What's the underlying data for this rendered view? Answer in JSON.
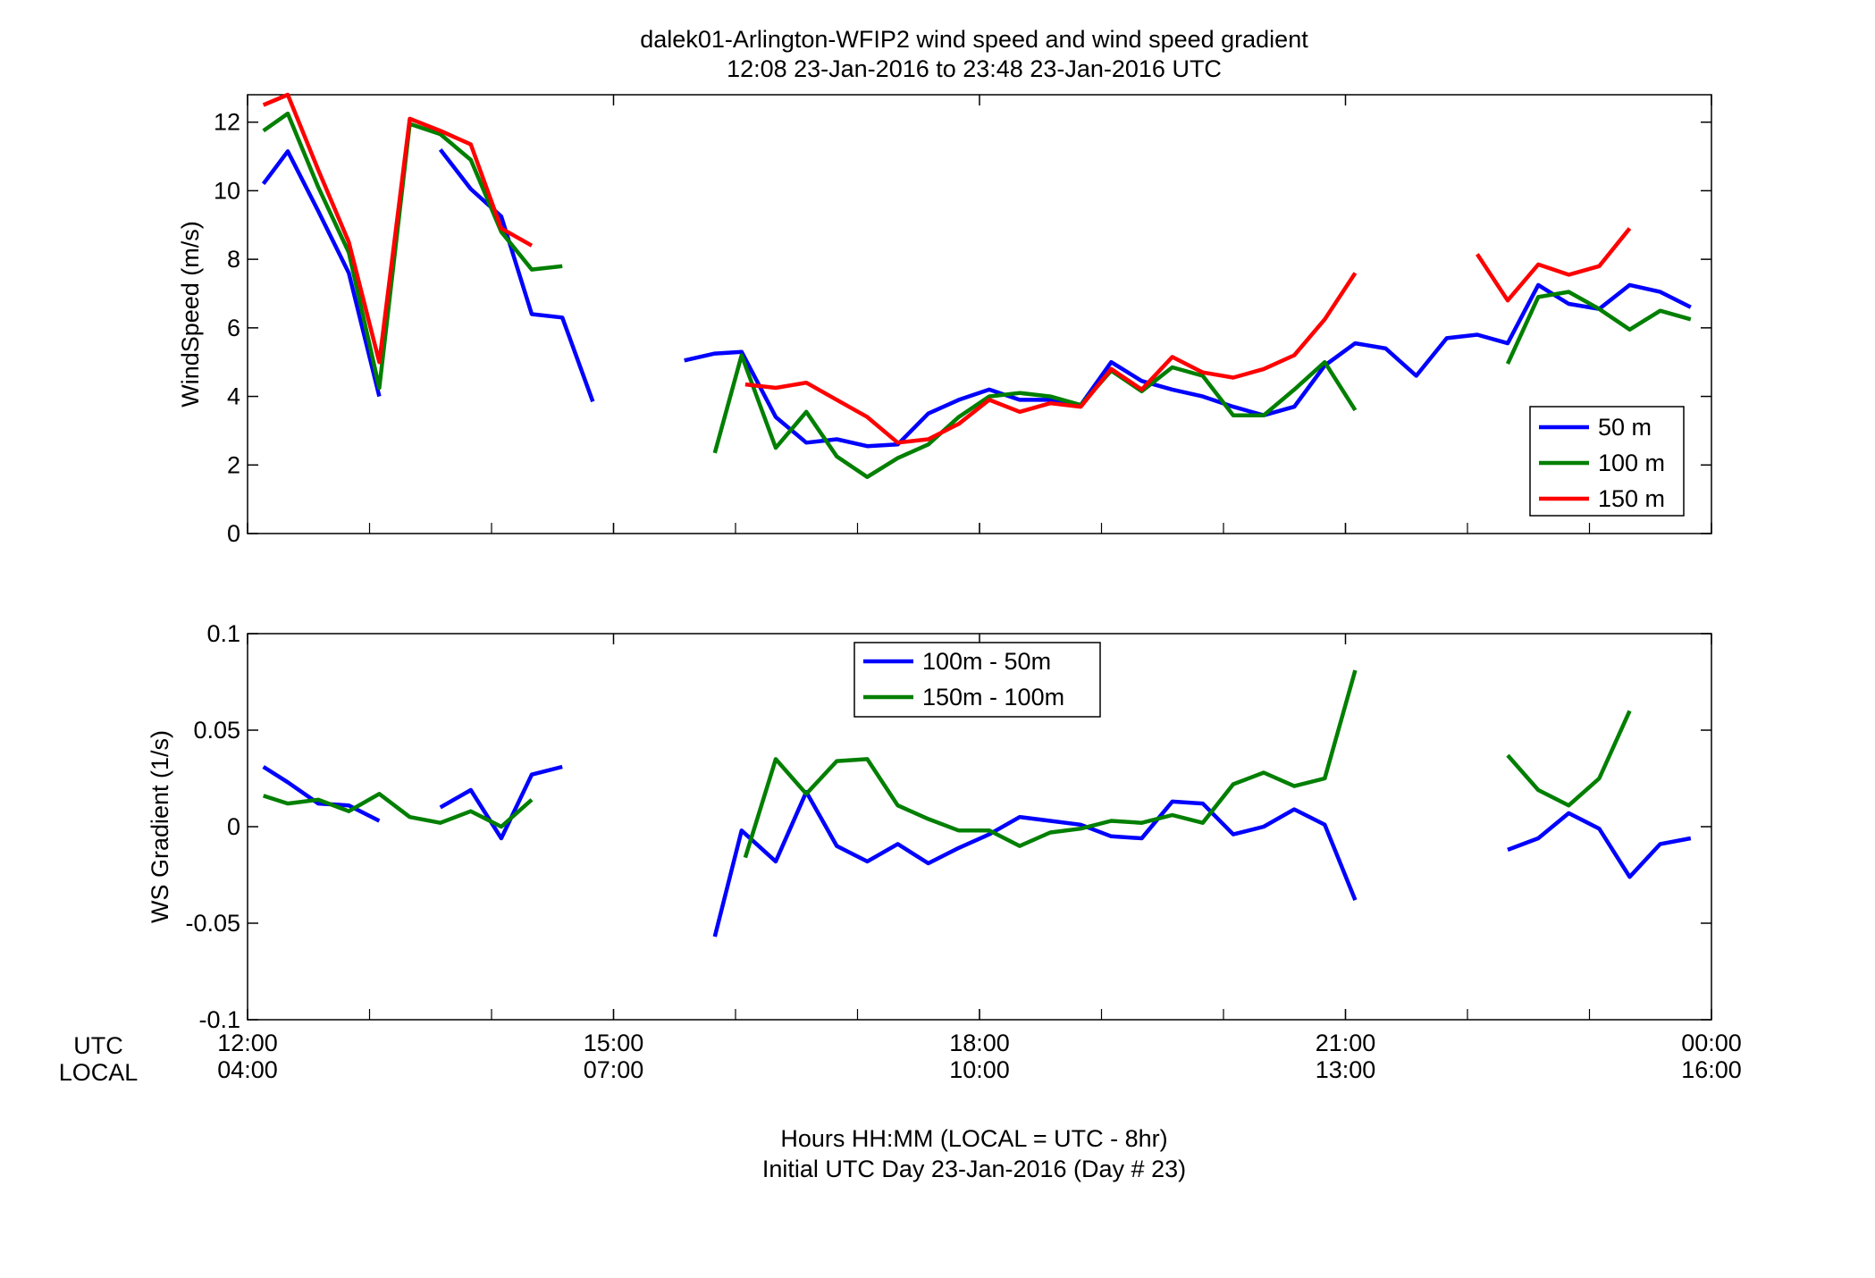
{
  "chart_data": {
    "title_line1": "dalek01-Arlington-WFIP2  wind speed and wind speed gradient",
    "title_line2": "12:08 23-Jan-2016 to 23:48 23-Jan-2016  UTC",
    "x_axis": {
      "unit": "hours",
      "range": [
        12,
        24
      ],
      "ticks": [
        12,
        15,
        18,
        21,
        24
      ],
      "utc_tick_labels": [
        "12:00",
        "15:00",
        "18:00",
        "21:00",
        "00:00"
      ],
      "local_tick_labels": [
        "04:00",
        "07:00",
        "10:00",
        "13:00",
        "16:00"
      ],
      "row_label_utc": "UTC",
      "row_label_local": "LOCAL",
      "xlabel_line1": "Hours HH:MM  (LOCAL = UTC - 8hr)",
      "xlabel_line2": "Initial UTC Day 23-Jan-2016 (Day # 23)"
    },
    "charts": [
      {
        "type": "line",
        "ylabel": "WindSpeed (m/s)",
        "ylim": [
          0,
          12.8
        ],
        "yticks": [
          0,
          2,
          4,
          6,
          8,
          10,
          12
        ],
        "ytick_labels": [
          "0",
          "2",
          "4",
          "6",
          "8",
          "10",
          "12"
        ],
        "grid": false,
        "legend_position": "bottom-right",
        "series": [
          {
            "name": "50 m",
            "color": "#0000ff",
            "segments": [
              [
                [
                  12.13,
                  10.2
                ],
                [
                  12.33,
                  11.15
                ],
                [
                  12.58,
                  9.4
                ],
                [
                  12.83,
                  7.6
                ],
                [
                  13.08,
                  4.0
                ]
              ],
              [
                [
                  13.58,
                  11.2
                ],
                [
                  13.83,
                  10.05
                ],
                [
                  14.08,
                  9.25
                ],
                [
                  14.33,
                  6.4
                ],
                [
                  14.58,
                  6.3
                ],
                [
                  14.83,
                  3.85
                ]
              ],
              [
                [
                  15.58,
                  5.05
                ],
                [
                  15.83,
                  5.25
                ],
                [
                  16.05,
                  5.3
                ],
                [
                  16.33,
                  3.4
                ],
                [
                  16.58,
                  2.65
                ],
                [
                  16.83,
                  2.75
                ],
                [
                  17.08,
                  2.55
                ],
                [
                  17.33,
                  2.6
                ],
                [
                  17.58,
                  3.5
                ],
                [
                  17.83,
                  3.9
                ],
                [
                  18.08,
                  4.2
                ],
                [
                  18.33,
                  3.9
                ],
                [
                  18.58,
                  3.9
                ],
                [
                  18.83,
                  3.75
                ],
                [
                  19.08,
                  5.0
                ],
                [
                  19.33,
                  4.45
                ],
                [
                  19.58,
                  4.2
                ],
                [
                  19.83,
                  4.0
                ],
                [
                  20.08,
                  3.7
                ],
                [
                  20.33,
                  3.45
                ],
                [
                  20.58,
                  3.7
                ],
                [
                  20.83,
                  4.9
                ],
                [
                  21.08,
                  5.55
                ],
                [
                  21.33,
                  5.4
                ],
                [
                  21.58,
                  4.6
                ],
                [
                  21.83,
                  5.7
                ],
                [
                  22.08,
                  5.8
                ],
                [
                  22.33,
                  5.55
                ],
                [
                  22.58,
                  7.25
                ],
                [
                  22.83,
                  6.7
                ],
                [
                  23.08,
                  6.55
                ],
                [
                  23.33,
                  7.25
                ],
                [
                  23.58,
                  7.05
                ],
                [
                  23.83,
                  6.6
                ]
              ]
            ]
          },
          {
            "name": "100 m",
            "color": "#007f00",
            "segments": [
              [
                [
                  12.13,
                  11.75
                ],
                [
                  12.33,
                  12.25
                ],
                [
                  12.58,
                  10.1
                ],
                [
                  12.83,
                  8.2
                ],
                [
                  13.08,
                  4.25
                ],
                [
                  13.33,
                  11.95
                ],
                [
                  13.58,
                  11.65
                ],
                [
                  13.83,
                  10.9
                ],
                [
                  14.08,
                  8.8
                ],
                [
                  14.33,
                  7.7
                ],
                [
                  14.58,
                  7.8
                ]
              ],
              [
                [
                  15.83,
                  2.35
                ],
                [
                  16.05,
                  5.2
                ],
                [
                  16.33,
                  2.5
                ],
                [
                  16.58,
                  3.55
                ],
                [
                  16.83,
                  2.25
                ],
                [
                  17.08,
                  1.65
                ],
                [
                  17.33,
                  2.2
                ],
                [
                  17.58,
                  2.6
                ],
                [
                  17.83,
                  3.4
                ],
                [
                  18.08,
                  4.0
                ],
                [
                  18.33,
                  4.1
                ],
                [
                  18.58,
                  4.0
                ],
                [
                  18.83,
                  3.75
                ],
                [
                  19.08,
                  4.75
                ],
                [
                  19.33,
                  4.15
                ],
                [
                  19.58,
                  4.85
                ],
                [
                  19.83,
                  4.6
                ],
                [
                  20.08,
                  3.45
                ],
                [
                  20.33,
                  3.45
                ],
                [
                  20.58,
                  4.2
                ],
                [
                  20.83,
                  5.0
                ],
                [
                  21.08,
                  3.6
                ]
              ],
              [
                [
                  22.33,
                  4.95
                ],
                [
                  22.58,
                  6.9
                ],
                [
                  22.83,
                  7.05
                ],
                [
                  23.08,
                  6.55
                ],
                [
                  23.33,
                  5.95
                ],
                [
                  23.58,
                  6.5
                ],
                [
                  23.83,
                  6.25
                ]
              ]
            ]
          },
          {
            "name": "150 m",
            "color": "#ff0000",
            "segments": [
              [
                [
                  12.13,
                  12.5
                ],
                [
                  12.33,
                  12.8
                ],
                [
                  12.58,
                  10.6
                ],
                [
                  12.83,
                  8.5
                ],
                [
                  13.08,
                  5.0
                ],
                [
                  13.33,
                  12.1
                ],
                [
                  13.58,
                  11.75
                ],
                [
                  13.83,
                  11.35
                ],
                [
                  14.08,
                  8.9
                ],
                [
                  14.33,
                  8.4
                ]
              ],
              [
                [
                  16.08,
                  4.35
                ],
                [
                  16.33,
                  4.25
                ],
                [
                  16.58,
                  4.4
                ],
                [
                  16.83,
                  3.9
                ],
                [
                  17.08,
                  3.4
                ],
                [
                  17.33,
                  2.65
                ],
                [
                  17.58,
                  2.75
                ],
                [
                  17.83,
                  3.2
                ],
                [
                  18.08,
                  3.9
                ],
                [
                  18.33,
                  3.55
                ],
                [
                  18.58,
                  3.8
                ],
                [
                  18.83,
                  3.7
                ],
                [
                  19.08,
                  4.8
                ],
                [
                  19.33,
                  4.2
                ],
                [
                  19.58,
                  5.15
                ],
                [
                  19.83,
                  4.7
                ],
                [
                  20.08,
                  4.55
                ],
                [
                  20.33,
                  4.8
                ],
                [
                  20.58,
                  5.2
                ],
                [
                  20.83,
                  6.25
                ],
                [
                  21.08,
                  7.6
                ]
              ],
              [
                [
                  22.08,
                  8.15
                ],
                [
                  22.33,
                  6.8
                ],
                [
                  22.58,
                  7.85
                ],
                [
                  22.83,
                  7.55
                ],
                [
                  23.08,
                  7.8
                ],
                [
                  23.33,
                  8.9
                ]
              ]
            ]
          }
        ],
        "legend": [
          "50 m",
          "100 m",
          "150 m"
        ]
      },
      {
        "type": "line",
        "ylabel": "WS Gradient (1/s)",
        "ylim": [
          -0.1,
          0.1
        ],
        "yticks": [
          -0.1,
          -0.05,
          0,
          0.05,
          0.1
        ],
        "ytick_labels": [
          "-0.1",
          "-0.05",
          "0",
          "0.05",
          "0.1"
        ],
        "grid": false,
        "legend_position": "top-center",
        "series": [
          {
            "name": "100m - 50m",
            "color": "#0000ff",
            "segments": [
              [
                [
                  12.13,
                  0.031
                ],
                [
                  12.33,
                  0.023
                ],
                [
                  12.58,
                  0.012
                ],
                [
                  12.83,
                  0.011
                ],
                [
                  13.08,
                  0.003
                ]
              ],
              [
                [
                  13.58,
                  0.01
                ],
                [
                  13.83,
                  0.019
                ],
                [
                  14.08,
                  -0.006
                ],
                [
                  14.33,
                  0.027
                ],
                [
                  14.58,
                  0.031
                ]
              ],
              [
                [
                  15.83,
                  -0.057
                ],
                [
                  16.05,
                  -0.002
                ],
                [
                  16.33,
                  -0.018
                ],
                [
                  16.58,
                  0.018
                ],
                [
                  16.83,
                  -0.01
                ],
                [
                  17.08,
                  -0.018
                ],
                [
                  17.33,
                  -0.009
                ],
                [
                  17.58,
                  -0.019
                ],
                [
                  17.83,
                  -0.011
                ],
                [
                  18.08,
                  -0.004
                ],
                [
                  18.33,
                  0.005
                ],
                [
                  18.58,
                  0.003
                ],
                [
                  18.83,
                  0.001
                ],
                [
                  19.08,
                  -0.005
                ],
                [
                  19.33,
                  -0.006
                ],
                [
                  19.58,
                  0.013
                ],
                [
                  19.83,
                  0.012
                ],
                [
                  20.08,
                  -0.004
                ],
                [
                  20.33,
                  0.0
                ],
                [
                  20.58,
                  0.009
                ],
                [
                  20.83,
                  0.001
                ],
                [
                  21.08,
                  -0.038
                ]
              ],
              [
                [
                  22.33,
                  -0.012
                ],
                [
                  22.58,
                  -0.006
                ],
                [
                  22.83,
                  0.007
                ],
                [
                  23.08,
                  -0.001
                ],
                [
                  23.33,
                  -0.026
                ],
                [
                  23.58,
                  -0.009
                ],
                [
                  23.83,
                  -0.006
                ]
              ]
            ]
          },
          {
            "name": "150m - 100m",
            "color": "#007f00",
            "segments": [
              [
                [
                  12.13,
                  0.016
                ],
                [
                  12.33,
                  0.012
                ],
                [
                  12.58,
                  0.014
                ],
                [
                  12.83,
                  0.008
                ],
                [
                  13.08,
                  0.017
                ],
                [
                  13.33,
                  0.005
                ],
                [
                  13.58,
                  0.002
                ],
                [
                  13.83,
                  0.008
                ],
                [
                  14.08,
                  0.0
                ],
                [
                  14.33,
                  0.014
                ]
              ],
              [
                [
                  16.08,
                  -0.016
                ],
                [
                  16.33,
                  0.035
                ],
                [
                  16.58,
                  0.017
                ],
                [
                  16.83,
                  0.034
                ],
                [
                  17.08,
                  0.035
                ],
                [
                  17.33,
                  0.011
                ],
                [
                  17.58,
                  0.004
                ],
                [
                  17.83,
                  -0.002
                ],
                [
                  18.08,
                  -0.002
                ],
                [
                  18.33,
                  -0.01
                ],
                [
                  18.58,
                  -0.003
                ],
                [
                  18.83,
                  -0.001
                ],
                [
                  19.08,
                  0.003
                ],
                [
                  19.33,
                  0.002
                ],
                [
                  19.58,
                  0.006
                ],
                [
                  19.83,
                  0.002
                ],
                [
                  20.08,
                  0.022
                ],
                [
                  20.33,
                  0.028
                ],
                [
                  20.58,
                  0.021
                ],
                [
                  20.83,
                  0.025
                ],
                [
                  21.08,
                  0.081
                ]
              ],
              [
                [
                  22.33,
                  0.037
                ],
                [
                  22.58,
                  0.019
                ],
                [
                  22.83,
                  0.011
                ],
                [
                  23.08,
                  0.025
                ],
                [
                  23.33,
                  0.06
                ]
              ]
            ]
          }
        ],
        "legend": [
          "100m - 50m",
          "150m - 100m"
        ]
      }
    ]
  }
}
